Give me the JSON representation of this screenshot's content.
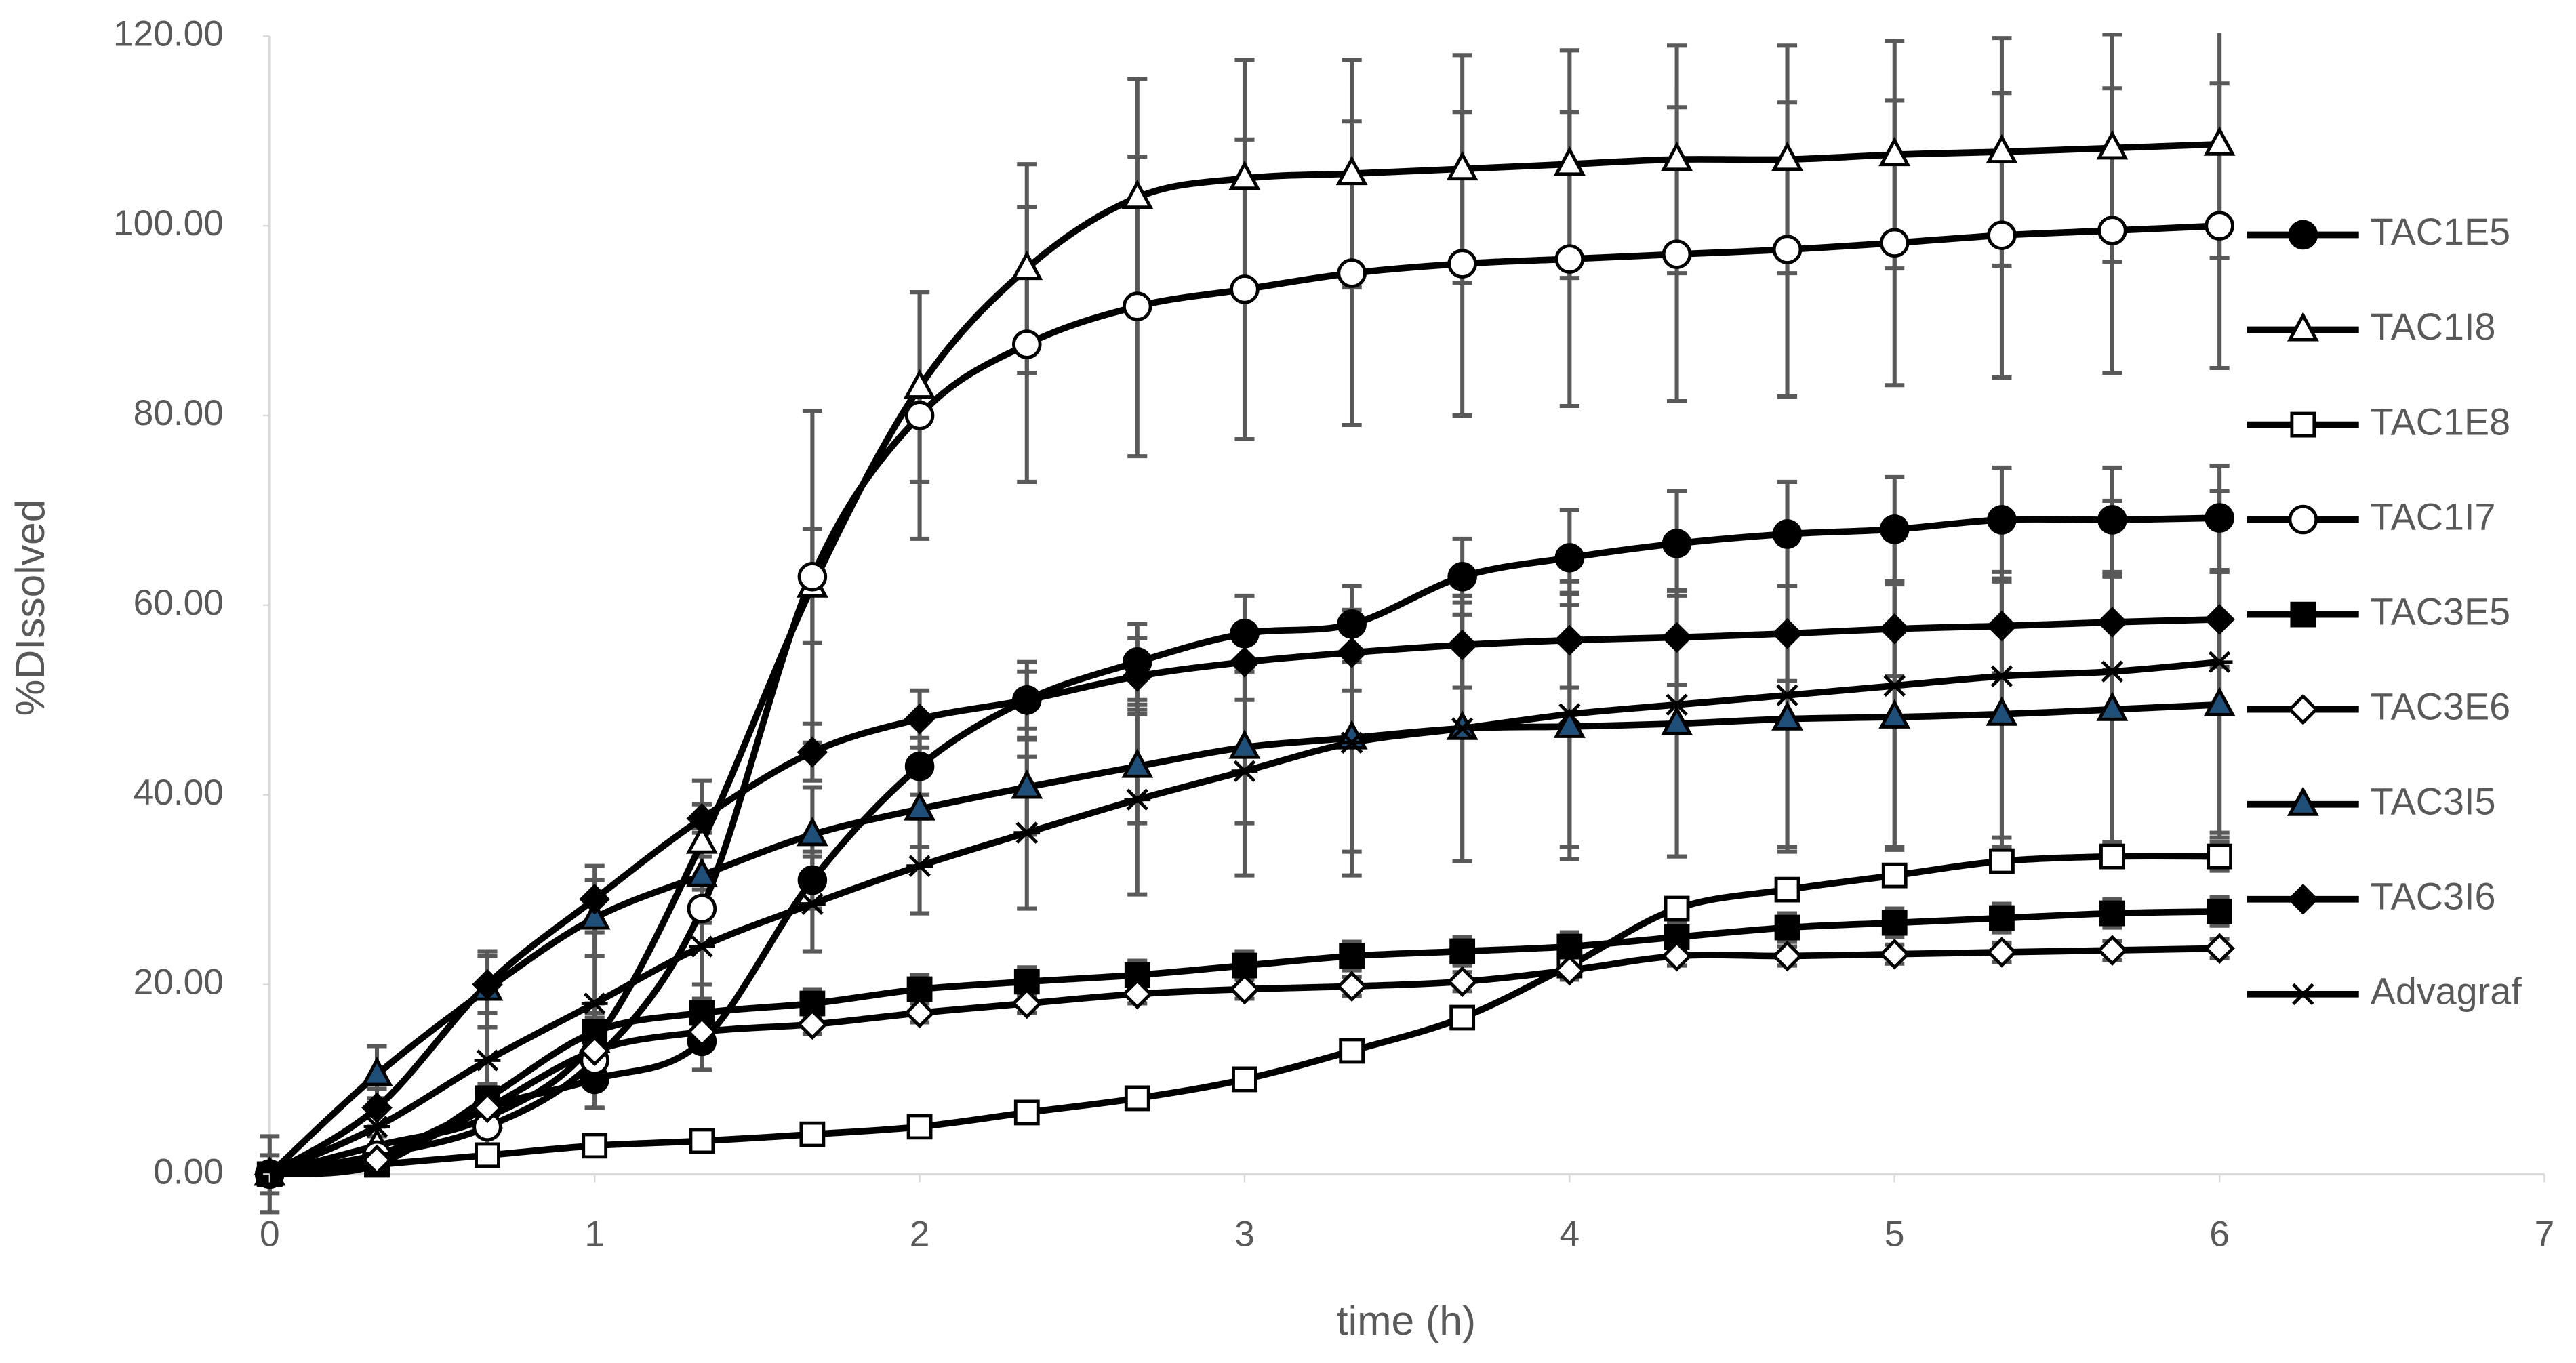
{
  "chart_data": {
    "type": "line",
    "x_label": "time (h)",
    "y_label": "%DIssolved",
    "x": [
      0,
      0.33,
      0.67,
      1,
      1.33,
      1.67,
      2,
      2.33,
      2.67,
      3,
      3.33,
      3.67,
      4,
      4.33,
      4.67,
      5,
      5.33,
      5.67,
      6
    ],
    "xlim": [
      0,
      7
    ],
    "xticks": [
      0,
      1,
      2,
      3,
      4,
      5,
      6,
      7
    ],
    "ylim": [
      0,
      120
    ],
    "yticks": [
      {
        "value": 0,
        "label": "0.00"
      },
      {
        "value": 20,
        "label": "20.00"
      },
      {
        "value": 40,
        "label": "40.00"
      },
      {
        "value": 60,
        "label": "60.00"
      },
      {
        "value": 80,
        "label": "80.00"
      },
      {
        "value": 100,
        "label": "100.00"
      },
      {
        "value": 120,
        "label": "120.00"
      }
    ],
    "grid": false,
    "smooth": true,
    "legend": "right",
    "series": [
      {
        "name": "TAC1E5",
        "color": "#000000",
        "marker": "circle",
        "marker_fill": "#000000",
        "values": [
          0,
          2,
          7,
          10,
          14,
          31,
          43,
          50,
          54,
          57,
          58,
          63,
          65,
          66.5,
          67.5,
          68,
          69,
          69,
          69.2
        ],
        "errors": [
          2,
          2,
          2,
          3,
          3,
          3,
          3,
          3,
          4,
          4,
          4,
          4,
          5,
          5.5,
          5.5,
          5.5,
          5.5,
          5.5,
          5.5
        ]
      },
      {
        "name": "TAC1I8",
        "color": "#000000",
        "marker": "triangle",
        "marker_fill": "#ffffff",
        "values": [
          0,
          3,
          6,
          14,
          35,
          62,
          83,
          95.5,
          103,
          105,
          105.5,
          106,
          106.5,
          107,
          107,
          107.5,
          107.8,
          108.2,
          108.6
        ],
        "errors": [
          0,
          1,
          2,
          4,
          4,
          6,
          10,
          11,
          12.5,
          12.5,
          12,
          12,
          12,
          12,
          12,
          12,
          12,
          12,
          12
        ]
      },
      {
        "name": "TAC1E8",
        "color": "#000000",
        "marker": "square",
        "marker_fill": "#ffffff",
        "values": [
          0,
          1,
          2,
          3,
          3.5,
          4.2,
          5,
          6.5,
          8,
          10,
          13,
          16.5,
          22,
          28,
          30,
          31.5,
          33,
          33.5,
          33.5
        ],
        "errors": [
          0,
          0.5,
          0.5,
          0.5,
          0.5,
          0.5,
          0.5,
          0.5,
          0.5,
          0.5,
          0.5,
          0.5,
          0.5,
          0.5,
          0.5,
          1,
          1,
          1,
          1.5
        ]
      },
      {
        "name": "TAC1I7",
        "color": "#000000",
        "marker": "circle",
        "marker_fill": "#ffffff",
        "values": [
          0,
          2,
          5,
          12,
          28,
          63,
          80,
          87.5,
          91.5,
          93.3,
          95,
          96,
          96.5,
          97,
          97.5,
          98.2,
          99,
          99.5,
          100
        ],
        "errors": [
          0,
          1,
          2,
          5,
          8,
          17.5,
          13,
          14.5,
          15.8,
          15.8,
          16,
          16,
          15.5,
          15.5,
          15.5,
          15,
          15,
          15,
          15
        ]
      },
      {
        "name": "TAC3E5",
        "color": "#000000",
        "marker": "square",
        "marker_fill": "#000000",
        "values": [
          0,
          1,
          8,
          15,
          17,
          18,
          19.5,
          20.3,
          21,
          22,
          23,
          23.5,
          24,
          25,
          26,
          26.5,
          27,
          27.5,
          27.7
        ],
        "errors": [
          0,
          1,
          1.5,
          1.5,
          1.5,
          1.5,
          1.5,
          1.5,
          1.5,
          1.5,
          1.5,
          1.5,
          1.5,
          1.5,
          1.5,
          1.5,
          1.5,
          1.5,
          1.5
        ]
      },
      {
        "name": "TAC3E6",
        "color": "#000000",
        "marker": "diamond",
        "marker_fill": "#ffffff",
        "values": [
          0,
          1.5,
          7,
          13,
          15,
          15.8,
          17,
          18,
          19,
          19.5,
          19.8,
          20.3,
          21.5,
          23,
          23,
          23.2,
          23.4,
          23.6,
          23.8
        ],
        "errors": [
          0,
          1,
          1,
          1,
          1,
          1,
          1,
          1,
          1,
          1,
          1,
          1,
          1,
          1,
          1,
          1,
          1,
          1,
          1
        ]
      },
      {
        "name": "TAC3I5",
        "color": "#000000",
        "marker": "triangle",
        "marker_fill": "#1f4e79",
        "values": [
          0,
          10.5,
          19.5,
          27,
          31.5,
          35.8,
          38.5,
          40.8,
          43,
          45,
          46,
          47,
          47.2,
          47.5,
          48,
          48.2,
          48.5,
          49,
          49.5
        ],
        "errors": [
          0,
          3,
          4,
          4,
          5,
          5,
          4,
          5,
          6,
          8,
          12,
          14,
          14,
          14,
          14,
          14,
          14,
          14,
          14
        ]
      },
      {
        "name": "TAC3I6",
        "color": "#000000",
        "marker": "diamond",
        "marker_fill": "#000000",
        "values": [
          0,
          7,
          20,
          29,
          37.5,
          44.5,
          48,
          50,
          52.5,
          54,
          55,
          55.8,
          56.3,
          56.6,
          57,
          57.5,
          57.8,
          58.2,
          58.5
        ],
        "errors": [
          0,
          2,
          3,
          3.5,
          4,
          3,
          3,
          4,
          4,
          4,
          4,
          4.5,
          5,
          5,
          5,
          5,
          5,
          5,
          5
        ]
      },
      {
        "name": "Advagraf",
        "color": "#000000",
        "marker": "asterisk",
        "marker_fill": "#000000",
        "values": [
          0,
          5,
          12,
          18,
          24,
          28.5,
          32.5,
          36,
          39.5,
          42.5,
          45.5,
          47,
          48.5,
          49.5,
          50.5,
          51.5,
          52.5,
          53,
          54
        ],
        "errors": [
          4,
          3,
          7,
          8,
          6,
          5,
          5,
          8,
          10,
          11,
          14,
          14,
          14,
          16,
          16,
          17,
          17,
          18,
          18
        ]
      }
    ]
  }
}
